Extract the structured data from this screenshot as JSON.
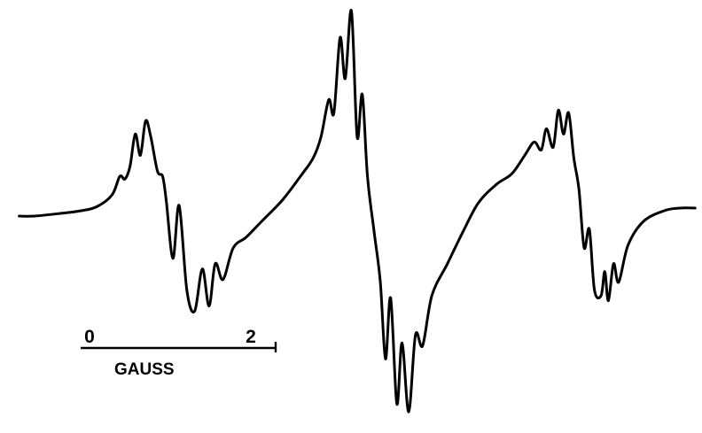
{
  "chart_data": {
    "type": "line",
    "title": "",
    "xlabel": "",
    "ylabel": "",
    "grid": false,
    "legend": "none",
    "line_color": "#000000",
    "series": [
      {
        "points": [
          [
            -9.8,
            0.0
          ],
          [
            -9.5,
            0.0
          ],
          [
            -9.0,
            0.02
          ],
          [
            -8.6,
            0.04
          ],
          [
            -8.3,
            0.07
          ],
          [
            -8.0,
            0.16
          ],
          [
            -7.85,
            0.3
          ],
          [
            -7.75,
            0.28
          ],
          [
            -7.65,
            0.38
          ],
          [
            -7.55,
            0.62
          ],
          [
            -7.45,
            0.46
          ],
          [
            -7.35,
            0.72
          ],
          [
            -7.25,
            0.6
          ],
          [
            -7.12,
            0.34
          ],
          [
            -7.02,
            0.3
          ],
          [
            -6.95,
            0.12
          ],
          [
            -6.82,
            -0.32
          ],
          [
            -6.7,
            0.08
          ],
          [
            -6.55,
            -0.56
          ],
          [
            -6.4,
            -0.72
          ],
          [
            -6.25,
            -0.4
          ],
          [
            -6.12,
            -0.68
          ],
          [
            -6.0,
            -0.36
          ],
          [
            -5.85,
            -0.48
          ],
          [
            -5.65,
            -0.24
          ],
          [
            -5.4,
            -0.16
          ],
          [
            -5.1,
            -0.04
          ],
          [
            -4.7,
            0.12
          ],
          [
            -4.35,
            0.3
          ],
          [
            -4.1,
            0.44
          ],
          [
            -3.95,
            0.6
          ],
          [
            -3.8,
            0.88
          ],
          [
            -3.7,
            0.78
          ],
          [
            -3.58,
            1.35
          ],
          [
            -3.48,
            1.04
          ],
          [
            -3.36,
            1.55
          ],
          [
            -3.25,
            0.6
          ],
          [
            -3.15,
            0.92
          ],
          [
            -3.05,
            0.3
          ],
          [
            -2.92,
            -0.12
          ],
          [
            -2.8,
            -0.5
          ],
          [
            -2.7,
            -1.08
          ],
          [
            -2.6,
            -0.62
          ],
          [
            -2.48,
            -1.42
          ],
          [
            -2.38,
            -0.96
          ],
          [
            -2.25,
            -1.48
          ],
          [
            -2.12,
            -0.9
          ],
          [
            -1.98,
            -0.98
          ],
          [
            -1.8,
            -0.6
          ],
          [
            -1.5,
            -0.36
          ],
          [
            -1.2,
            -0.12
          ],
          [
            -0.9,
            0.1
          ],
          [
            -0.55,
            0.24
          ],
          [
            -0.25,
            0.32
          ],
          [
            0.0,
            0.46
          ],
          [
            0.18,
            0.56
          ],
          [
            0.32,
            0.5
          ],
          [
            0.42,
            0.66
          ],
          [
            0.55,
            0.52
          ],
          [
            0.65,
            0.8
          ],
          [
            0.75,
            0.62
          ],
          [
            0.85,
            0.78
          ],
          [
            0.95,
            0.44
          ],
          [
            1.05,
            0.2
          ],
          [
            1.15,
            -0.24
          ],
          [
            1.25,
            -0.1
          ],
          [
            1.35,
            -0.56
          ],
          [
            1.48,
            -0.6
          ],
          [
            1.55,
            -0.42
          ],
          [
            1.62,
            -0.64
          ],
          [
            1.72,
            -0.36
          ],
          [
            1.82,
            -0.5
          ],
          [
            2.0,
            -0.22
          ],
          [
            2.3,
            -0.04
          ],
          [
            2.7,
            0.04
          ],
          [
            3.0,
            0.06
          ],
          [
            3.3,
            0.06
          ]
        ]
      }
    ],
    "xlim": [
      -10.0,
      3.4
    ],
    "ylim": [
      -1.58,
      1.58
    ],
    "scale_bar": {
      "start_value": 0,
      "end_value": 2,
      "start_label": "0",
      "end_label": "2",
      "unit_label": "GAUSS"
    }
  }
}
